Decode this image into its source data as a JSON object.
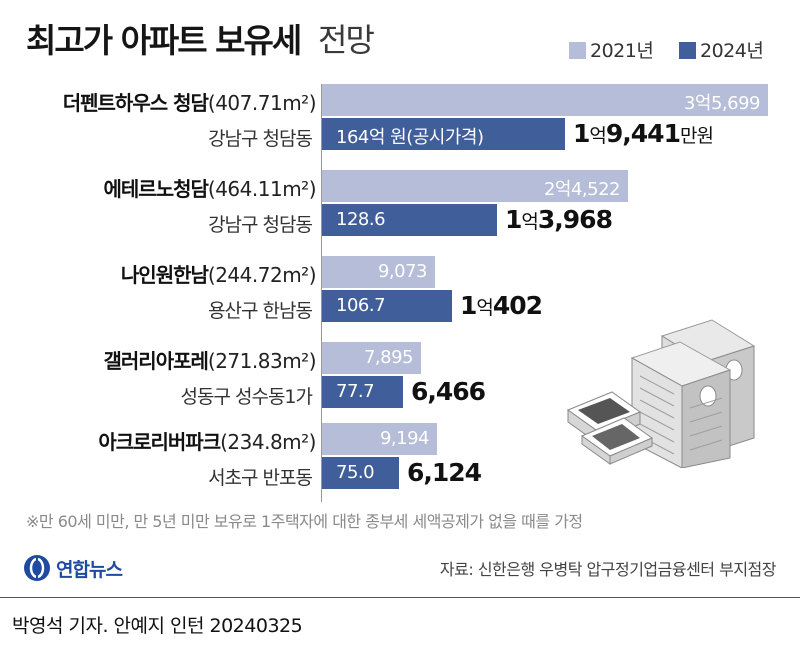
{
  "header": {
    "title_bold": "최고가 아파트 보유세",
    "title_light": "전망"
  },
  "legend": [
    {
      "label": "2021년",
      "color": "#b5bdd9"
    },
    {
      "label": "2024년",
      "color": "#3f5e9a"
    }
  ],
  "rows": [
    {
      "name": "더펜트하우스 청담",
      "area": "(407.71m²)",
      "location": "강남구 청담동",
      "label_2021": "3억5,699",
      "label_2024_inside": "164억 원(공시가격)",
      "out_prefix": "1",
      "out_unit1": "억",
      "out_num": "9,441",
      "out_unit2": "만원"
    },
    {
      "name": "에테르노청담",
      "area": "(464.11m²)",
      "location": "강남구 청담동",
      "label_2021": "2억4,522",
      "label_2024_inside": "128.6",
      "out_prefix": "1",
      "out_unit1": "억",
      "out_num": "3,968",
      "out_unit2": ""
    },
    {
      "name": "나인원한남",
      "area": "(244.72m²)",
      "location": "용산구 한남동",
      "label_2021": "9,073",
      "label_2024_inside": "106.7",
      "out_prefix": "1",
      "out_unit1": "억",
      "out_num": "402",
      "out_unit2": ""
    },
    {
      "name": "갤러리아포레",
      "area": "(271.83m²)",
      "location": "성동구 성수동1가",
      "label_2021": "7,895",
      "label_2024_inside": "77.7",
      "out_prefix": "",
      "out_unit1": "",
      "out_num": "6,466",
      "out_unit2": ""
    },
    {
      "name": "아크로리버파크",
      "area": "(234.8m²)",
      "location": "서초구 반포동",
      "label_2021": "9,194",
      "label_2024_inside": "75.0",
      "out_prefix": "",
      "out_unit1": "",
      "out_num": "6,124",
      "out_unit2": ""
    }
  ],
  "chart_data": {
    "type": "bar",
    "orientation": "horizontal",
    "categories": [
      "더펜트하우스 청담",
      "에테르노청담",
      "나인원한남",
      "갤러리아포레",
      "아크로리버파크"
    ],
    "series": [
      {
        "name": "2021년",
        "values": [
          35699,
          24522,
          9073,
          7895,
          9194
        ],
        "color": "#b5bdd9"
      },
      {
        "name": "2024년",
        "values": [
          19441,
          13968,
          10402,
          6466,
          6124
        ],
        "color": "#3f5e9a"
      }
    ],
    "public_price_eok": [
      164,
      128.6,
      106.7,
      77.7,
      75.0
    ],
    "value_unit": "만원",
    "title": "최고가 아파트 보유세 전망",
    "legend_position": "top-right",
    "grid": false
  },
  "footnote": "※만 60세 미만, 만 5년 미만 보유로 1주택자에 대한 종부세 세액공제가 없을 때를 가정",
  "logo": {
    "text": "연합뉴스"
  },
  "source": "자료: 신한은행 우병탁 압구정기업금융센터 부지점장",
  "credit": "박영석 기자. 안예지 인턴 20240325"
}
